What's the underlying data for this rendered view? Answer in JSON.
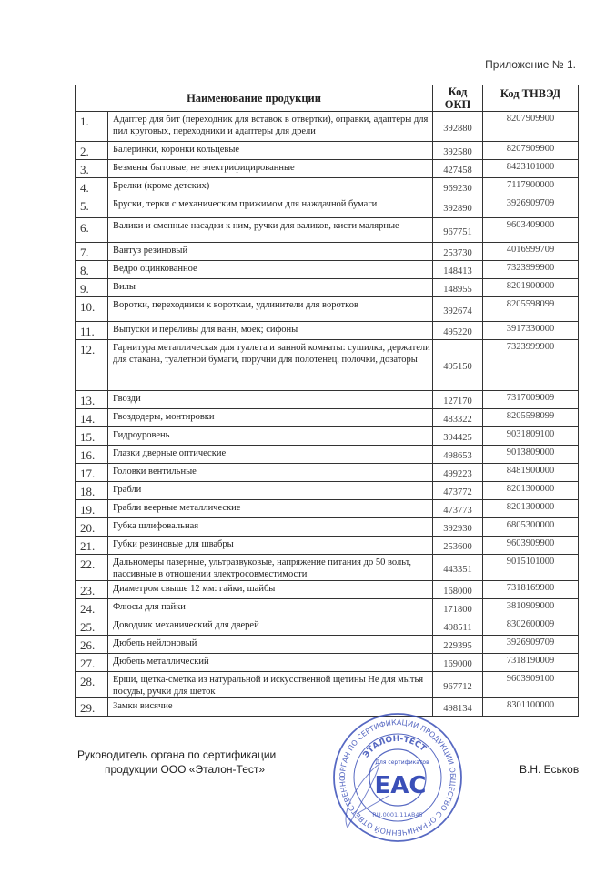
{
  "appendix_label": "Приложение № 1.",
  "table": {
    "headers": {
      "name": "Наименование продукции",
      "okp": "Код ОКП",
      "tnved": "Код ТНВЭД"
    },
    "rows": [
      {
        "num": "1.",
        "name": "Адаптер для бит (переходник для вставок в отвертки), оправки, адаптеры для пил круговых, переходники и адаптеры для дрели",
        "okp": "392880",
        "tnved": "8207909900"
      },
      {
        "num": "2.",
        "name": "Балеринки, коронки кольцевые",
        "okp": "392580",
        "tnved": "8207909900"
      },
      {
        "num": "3.",
        "name": "Безмены бытовые, не электрифицированные",
        "okp": "427458",
        "tnved": "8423101000"
      },
      {
        "num": "4.",
        "name": "Брелки (кроме детских)",
        "okp": "969230",
        "tnved": "7117900000"
      },
      {
        "num": "5.",
        "name": "Бруски, терки с механическим прижимом для наждачной бумаги",
        "okp": "392890",
        "tnved": "3926909709"
      },
      {
        "num": "6.",
        "name": "Валики и сменные насадки к ним, ручки для валиков, кисти малярные",
        "okp": "967751",
        "tnved": "9603409000"
      },
      {
        "num": "7.",
        "name": "Вантуз резиновый",
        "okp": "253730",
        "tnved": "4016999709"
      },
      {
        "num": "8.",
        "name": "Ведро оцинкованное",
        "okp": "148413",
        "tnved": "7323999900"
      },
      {
        "num": "9.",
        "name": "Вилы",
        "okp": "148955",
        "tnved": "8201900000"
      },
      {
        "num": "10.",
        "name": "Воротки, переходники к вороткам, удлинители для воротков",
        "okp": "392674",
        "tnved": "8205598099"
      },
      {
        "num": "11.",
        "name": "Выпуски и переливы для ванн, моек; сифоны",
        "okp": "495220",
        "tnved": "3917330000"
      },
      {
        "num": "12.",
        "name": "Гарнитура металлическая для туалета и ванной комнаты: сушилка, держатели для стакана, туалетной бумаги, поручни для полотенец, полочки, дозаторы",
        "okp": "495150",
        "tnved": "7323999900"
      },
      {
        "num": "13.",
        "name": "Гвозди",
        "okp": "127170",
        "tnved": "7317009009"
      },
      {
        "num": "14.",
        "name": "Гвоздодеры, монтировки",
        "okp": "483322",
        "tnved": "8205598099"
      },
      {
        "num": "15.",
        "name": "Гидроуровень",
        "okp": "394425",
        "tnved": "9031809100"
      },
      {
        "num": "16.",
        "name": "Глазки дверные оптические",
        "okp": "498653",
        "tnved": "9013809000"
      },
      {
        "num": "17.",
        "name": "Головки вентильные",
        "okp": "499223",
        "tnved": "8481900000"
      },
      {
        "num": "18.",
        "name": "Грабли",
        "okp": "473772",
        "tnved": "8201300000"
      },
      {
        "num": "19.",
        "name": "Грабли веерные металлические",
        "okp": "473773",
        "tnved": "8201300000"
      },
      {
        "num": "20.",
        "name": "Губка шлифовальная",
        "okp": "392930",
        "tnved": "6805300000"
      },
      {
        "num": "21.",
        "name": "Губки резиновые для швабры",
        "okp": "253600",
        "tnved": "9603909900"
      },
      {
        "num": "22.",
        "name": "Дальномеры лазерные, ультразвуковые, напряжение питания до 50 вольт, пассивные в отношении электросовместимости",
        "okp": "443351",
        "tnved": "9015101000"
      },
      {
        "num": "23.",
        "name": "Диаметром свыше 12 мм: гайки, шайбы",
        "okp": "168000",
        "tnved": "7318169900"
      },
      {
        "num": "24.",
        "name": "Флюсы для пайки",
        "okp": "171800",
        "tnved": "3810909000"
      },
      {
        "num": "25.",
        "name": "Доводчик механический для дверей",
        "okp": "498511",
        "tnved": "8302600009"
      },
      {
        "num": "26.",
        "name": "Дюбель нейлоновый",
        "okp": "229395",
        "tnved": "3926909709"
      },
      {
        "num": "27.",
        "name": "Дюбель металлический",
        "okp": "169000",
        "tnved": "7318190009"
      },
      {
        "num": "28.",
        "name": "Ерши, щетка-сметка из натуральной и искусственной щетины Не для мытья посуды, ручки для щеток",
        "okp": "967712",
        "tnved": "9603909100"
      },
      {
        "num": "29.",
        "name": "Замки висячие",
        "okp": "498134",
        "tnved": "8301100000"
      }
    ]
  },
  "signature": {
    "title_line1": "Руководитель органа по сертификации",
    "title_line2": "продукции ООО «Эталон-Тест»",
    "name": "В.Н. Еськов"
  },
  "stamp": {
    "outer_text": "ОРГАН ПО СЕРТИФИКАЦИИ ПРОДУКЦИИ ОБЩЕСТВО С ОГРАНИЧЕННОЙ ОТВЕТСТВЕННОСТЬЮ",
    "company": "ЭТАЛОН-ТЕСТ",
    "center_text": "Для сертификатов",
    "mark": "EAC",
    "reg_number": "RU.0001.11АВ45",
    "color": "#3a4fb8"
  }
}
